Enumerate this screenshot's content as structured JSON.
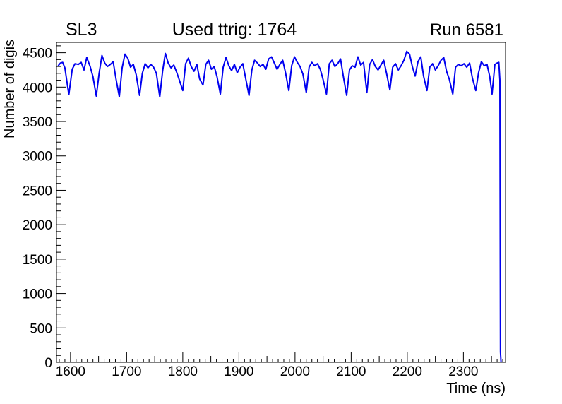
{
  "window": {
    "background": "#ffffff"
  },
  "header": {
    "left_title": "SL3",
    "center_title": "Used ttrig: 1764",
    "right_title": "Run 6581"
  },
  "chart_data": {
    "type": "line",
    "title": "Used ttrig: 1764",
    "pad_titles": [
      "SL3",
      "Used ttrig: 1764",
      "Run 6581"
    ],
    "xlabel": "Time (ns)",
    "ylabel": "Number of digis",
    "xlim": [
      1575,
      2375
    ],
    "ylim": [
      0,
      4650
    ],
    "x_major_ticks": [
      1600,
      1700,
      1800,
      1900,
      2000,
      2100,
      2200,
      2300
    ],
    "x_medium_step": 50,
    "x_minor_step": 10,
    "y_major_ticks": [
      0,
      500,
      1000,
      1500,
      2000,
      2500,
      3000,
      3500,
      4000,
      4500
    ],
    "y_minor_step": 100,
    "grid": false,
    "legend_position": "none",
    "line_color": "#0000f0",
    "line_width": 2,
    "axis_color": "#000000",
    "series": [
      {
        "name": "number-of-digis-vs-time",
        "points": [
          [
            1578,
            4310
          ],
          [
            1582,
            4350
          ],
          [
            1586,
            4360
          ],
          [
            1590,
            4280
          ],
          [
            1597,
            3890
          ],
          [
            1603,
            4260
          ],
          [
            1608,
            4340
          ],
          [
            1614,
            4330
          ],
          [
            1619,
            4360
          ],
          [
            1624,
            4250
          ],
          [
            1629,
            4430
          ],
          [
            1635,
            4300
          ],
          [
            1640,
            4150
          ],
          [
            1646,
            3870
          ],
          [
            1651,
            4200
          ],
          [
            1656,
            4460
          ],
          [
            1661,
            4350
          ],
          [
            1666,
            4300
          ],
          [
            1671,
            4330
          ],
          [
            1676,
            4370
          ],
          [
            1681,
            4120
          ],
          [
            1687,
            3860
          ],
          [
            1692,
            4280
          ],
          [
            1697,
            4480
          ],
          [
            1702,
            4420
          ],
          [
            1707,
            4290
          ],
          [
            1712,
            4330
          ],
          [
            1717,
            4180
          ],
          [
            1723,
            3880
          ],
          [
            1728,
            4200
          ],
          [
            1733,
            4340
          ],
          [
            1738,
            4280
          ],
          [
            1743,
            4330
          ],
          [
            1748,
            4290
          ],
          [
            1753,
            4200
          ],
          [
            1759,
            3860
          ],
          [
            1764,
            4230
          ],
          [
            1769,
            4490
          ],
          [
            1774,
            4350
          ],
          [
            1779,
            4280
          ],
          [
            1784,
            4320
          ],
          [
            1789,
            4220
          ],
          [
            1794,
            4100
          ],
          [
            1800,
            3950
          ],
          [
            1805,
            4340
          ],
          [
            1810,
            4420
          ],
          [
            1815,
            4300
          ],
          [
            1820,
            4230
          ],
          [
            1825,
            4330
          ],
          [
            1830,
            4120
          ],
          [
            1836,
            4030
          ],
          [
            1841,
            4330
          ],
          [
            1846,
            4390
          ],
          [
            1851,
            4260
          ],
          [
            1856,
            4300
          ],
          [
            1861,
            4150
          ],
          [
            1867,
            3900
          ],
          [
            1872,
            4290
          ],
          [
            1877,
            4430
          ],
          [
            1882,
            4310
          ],
          [
            1887,
            4240
          ],
          [
            1892,
            4330
          ],
          [
            1897,
            4210
          ],
          [
            1902,
            4290
          ],
          [
            1907,
            4340
          ],
          [
            1912,
            4130
          ],
          [
            1918,
            3880
          ],
          [
            1923,
            4250
          ],
          [
            1928,
            4390
          ],
          [
            1933,
            4350
          ],
          [
            1938,
            4300
          ],
          [
            1943,
            4330
          ],
          [
            1948,
            4260
          ],
          [
            1953,
            4410
          ],
          [
            1958,
            4440
          ],
          [
            1963,
            4350
          ],
          [
            1968,
            4260
          ],
          [
            1973,
            4330
          ],
          [
            1978,
            4390
          ],
          [
            1983,
            4210
          ],
          [
            1989,
            3950
          ],
          [
            1994,
            4310
          ],
          [
            1999,
            4440
          ],
          [
            2004,
            4360
          ],
          [
            2009,
            4300
          ],
          [
            2014,
            4190
          ],
          [
            2020,
            3920
          ],
          [
            2025,
            4290
          ],
          [
            2030,
            4360
          ],
          [
            2035,
            4310
          ],
          [
            2040,
            4340
          ],
          [
            2045,
            4260
          ],
          [
            2050,
            4110
          ],
          [
            2056,
            3900
          ],
          [
            2061,
            4340
          ],
          [
            2066,
            4390
          ],
          [
            2071,
            4300
          ],
          [
            2076,
            4340
          ],
          [
            2081,
            4410
          ],
          [
            2086,
            4160
          ],
          [
            2092,
            3880
          ],
          [
            2097,
            4250
          ],
          [
            2102,
            4310
          ],
          [
            2107,
            4290
          ],
          [
            2112,
            4440
          ],
          [
            2117,
            4320
          ],
          [
            2122,
            4360
          ],
          [
            2128,
            3920
          ],
          [
            2133,
            4330
          ],
          [
            2138,
            4400
          ],
          [
            2143,
            4300
          ],
          [
            2148,
            4250
          ],
          [
            2153,
            4320
          ],
          [
            2158,
            4390
          ],
          [
            2163,
            4200
          ],
          [
            2169,
            3960
          ],
          [
            2174,
            4290
          ],
          [
            2179,
            4340
          ],
          [
            2184,
            4250
          ],
          [
            2189,
            4310
          ],
          [
            2194,
            4390
          ],
          [
            2199,
            4520
          ],
          [
            2204,
            4480
          ],
          [
            2209,
            4300
          ],
          [
            2214,
            4160
          ],
          [
            2219,
            4370
          ],
          [
            2224,
            4440
          ],
          [
            2229,
            4160
          ],
          [
            2235,
            3950
          ],
          [
            2240,
            4290
          ],
          [
            2245,
            4340
          ],
          [
            2250,
            4250
          ],
          [
            2255,
            4310
          ],
          [
            2260,
            4390
          ],
          [
            2265,
            4430
          ],
          [
            2270,
            4230
          ],
          [
            2275,
            4110
          ],
          [
            2281,
            3900
          ],
          [
            2286,
            4290
          ],
          [
            2291,
            4330
          ],
          [
            2296,
            4310
          ],
          [
            2301,
            4340
          ],
          [
            2306,
            4290
          ],
          [
            2311,
            4350
          ],
          [
            2316,
            4130
          ],
          [
            2322,
            3950
          ],
          [
            2327,
            4210
          ],
          [
            2332,
            4370
          ],
          [
            2337,
            4310
          ],
          [
            2342,
            4330
          ],
          [
            2347,
            4150
          ],
          [
            2351,
            3900
          ],
          [
            2356,
            4330
          ],
          [
            2360,
            4350
          ],
          [
            2363,
            4360
          ],
          [
            2365,
            4100
          ],
          [
            2366,
            150
          ],
          [
            2367,
            10
          ]
        ]
      }
    ]
  }
}
